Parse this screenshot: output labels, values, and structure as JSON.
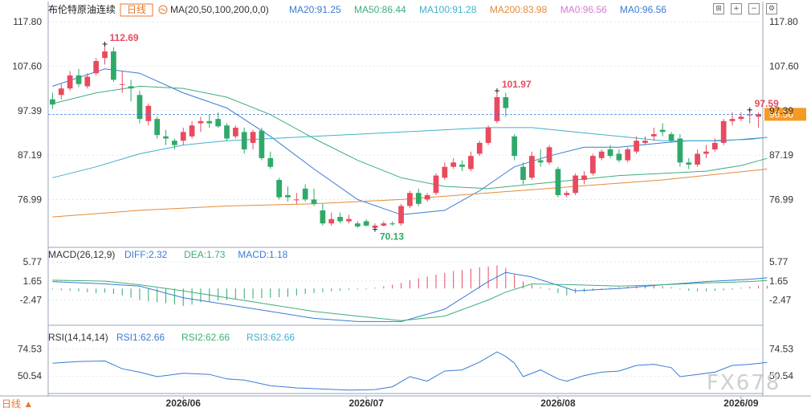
{
  "header": {
    "title": "布伦特原油连续",
    "period_tag": "日线",
    "ma_label": "MA(20,50,100,200,0,0)",
    "ma_values": [
      {
        "text": "MA20:91.25",
        "color": "#3a7bd5"
      },
      {
        "text": "MA50:86.44",
        "color": "#3fae78"
      },
      {
        "text": "MA100:91.28",
        "color": "#42b0cc"
      },
      {
        "text": "MA200:83.98",
        "color": "#e58a3a"
      },
      {
        "text": "MA0:96.56",
        "color": "#d57ad5"
      },
      {
        "text": "MA0:96.56",
        "color": "#3a7bd5"
      }
    ]
  },
  "toolbar": {
    "icons": [
      "grid-icon",
      "plus-icon",
      "minus-icon",
      "settings-icon"
    ]
  },
  "macd_header": {
    "label": "MACD(26,12,9)",
    "values": [
      {
        "text": "DIFF:2.32",
        "color": "#3a7bd5"
      },
      {
        "text": "DEA:1.73",
        "color": "#3fae78"
      },
      {
        "text": "MACD:1.18",
        "color": "#3a7bd5"
      }
    ]
  },
  "rsi_header": {
    "label": "RSI(14,14,14)",
    "values": [
      {
        "text": "RSI1:62.66",
        "color": "#3a7bd5"
      },
      {
        "text": "RSI2:62.66",
        "color": "#3fae78"
      },
      {
        "text": "RSI3:62.66",
        "color": "#42b0cc"
      }
    ]
  },
  "footer": {
    "period_button": "日线 ▲",
    "watermark": "FX678"
  },
  "colors": {
    "up": "#e84a5f",
    "down": "#2fa96a",
    "grid": "#cfd6e4",
    "axis_text": "#333333",
    "price_box": "#f59a23",
    "current_line": "#3a7bd5"
  },
  "chart_data": {
    "type": "candlestick",
    "price_axis": {
      "ticks": [
        117.8,
        107.6,
        97.39,
        87.19,
        76.99
      ],
      "range": [
        66.0,
        119.5
      ]
    },
    "x_labels": [
      {
        "index": 15,
        "label": "2026/06"
      },
      {
        "index": 36,
        "label": "2026/07"
      },
      {
        "index": 58,
        "label": "2026/08"
      },
      {
        "index": 79,
        "label": "2026/09"
      }
    ],
    "current_price": 96.56,
    "annotations": [
      {
        "index": 6,
        "label": "112.69",
        "kind": "high"
      },
      {
        "index": 37,
        "label": "70.13",
        "kind": "low"
      },
      {
        "index": 51,
        "label": "101.97",
        "kind": "high"
      },
      {
        "index": 80,
        "label": "97.59",
        "kind": "high"
      }
    ],
    "ohlc": [
      [
        100.0,
        101.5,
        97.8,
        98.8
      ],
      [
        101.0,
        103.5,
        100.0,
        102.5
      ],
      [
        102.5,
        106.5,
        102.0,
        105.5
      ],
      [
        105.5,
        107.0,
        102.8,
        103.5
      ],
      [
        103.0,
        106.0,
        102.5,
        105.2
      ],
      [
        106.0,
        109.5,
        105.5,
        108.8
      ],
      [
        109.5,
        112.69,
        108.0,
        111.0
      ],
      [
        111.0,
        112.0,
        104.0,
        104.5
      ],
      [
        103.5,
        106.5,
        101.5,
        103.5
      ],
      [
        103.0,
        104.5,
        99.5,
        102.5
      ],
      [
        101.0,
        102.0,
        94.5,
        95.5
      ],
      [
        95.0,
        99.0,
        94.0,
        98.5
      ],
      [
        95.5,
        96.0,
        91.0,
        91.8
      ],
      [
        91.5,
        93.0,
        89.5,
        91.0
      ],
      [
        90.5,
        91.0,
        88.5,
        89.5
      ],
      [
        90.5,
        93.5,
        89.5,
        92.5
      ],
      [
        91.5,
        95.0,
        91.0,
        94.0
      ],
      [
        94.5,
        96.0,
        92.5,
        95.0
      ],
      [
        95.0,
        96.5,
        93.5,
        94.5
      ],
      [
        95.5,
        97.0,
        93.5,
        93.8
      ],
      [
        94.0,
        94.5,
        90.5,
        91.0
      ],
      [
        91.5,
        94.0,
        91.0,
        93.5
      ],
      [
        92.5,
        93.5,
        87.5,
        88.5
      ],
      [
        90.0,
        93.0,
        88.5,
        92.5
      ],
      [
        92.8,
        93.5,
        86.0,
        86.5
      ],
      [
        86.5,
        88.0,
        84.0,
        84.5
      ],
      [
        81.5,
        82.0,
        77.0,
        77.5
      ],
      [
        78.0,
        80.0,
        76.5,
        77.5
      ],
      [
        77.0,
        78.5,
        76.0,
        77.0
      ],
      [
        79.5,
        80.5,
        76.5,
        77.0
      ],
      [
        77.0,
        79.5,
        75.5,
        76.0
      ],
      [
        74.5,
        76.0,
        71.0,
        71.5
      ],
      [
        71.5,
        74.0,
        71.0,
        72.5
      ],
      [
        73.0,
        74.0,
        71.5,
        72.0
      ],
      [
        72.0,
        73.5,
        71.5,
        72.5
      ],
      [
        71.5,
        72.0,
        70.5,
        70.8
      ],
      [
        72.0,
        72.5,
        70.8,
        71.0
      ],
      [
        70.5,
        71.5,
        70.13,
        71.0
      ],
      [
        71.0,
        72.0,
        70.8,
        71.5
      ],
      [
        71.5,
        72.0,
        71.0,
        71.3
      ],
      [
        71.5,
        76.0,
        71.0,
        75.5
      ],
      [
        75.5,
        79.0,
        75.0,
        78.5
      ],
      [
        78.5,
        79.5,
        75.5,
        76.0
      ],
      [
        77.0,
        78.5,
        76.5,
        78.0
      ],
      [
        78.5,
        83.0,
        78.0,
        82.5
      ],
      [
        82.0,
        85.5,
        81.5,
        84.5
      ],
      [
        84.5,
        86.5,
        84.0,
        85.5
      ],
      [
        85.0,
        86.0,
        83.5,
        84.5
      ],
      [
        84.0,
        88.0,
        83.5,
        87.0
      ],
      [
        87.5,
        90.5,
        87.0,
        90.0
      ],
      [
        90.0,
        94.0,
        89.5,
        93.5
      ],
      [
        95.0,
        101.97,
        94.5,
        100.5
      ],
      [
        100.5,
        101.5,
        96.0,
        98.0
      ],
      [
        91.5,
        92.0,
        86.0,
        87.0
      ],
      [
        84.5,
        85.5,
        80.5,
        81.5
      ],
      [
        82.0,
        88.0,
        81.5,
        87.0
      ],
      [
        86.0,
        88.5,
        84.5,
        85.5
      ],
      [
        85.5,
        89.5,
        85.0,
        89.0
      ],
      [
        84.0,
        84.5,
        77.5,
        78.0
      ],
      [
        78.0,
        79.0,
        77.5,
        78.5
      ],
      [
        78.5,
        83.0,
        78.0,
        82.5
      ],
      [
        81.5,
        83.5,
        80.5,
        82.5
      ],
      [
        83.0,
        87.5,
        82.5,
        87.0
      ],
      [
        86.5,
        88.5,
        86.0,
        88.0
      ],
      [
        88.5,
        89.5,
        86.5,
        87.0
      ],
      [
        87.5,
        88.5,
        85.5,
        86.0
      ],
      [
        86.0,
        89.0,
        85.5,
        88.5
      ],
      [
        88.0,
        91.5,
        87.5,
        90.5
      ],
      [
        90.0,
        91.5,
        89.5,
        90.5
      ],
      [
        91.5,
        93.5,
        90.5,
        92.0
      ],
      [
        93.0,
        94.5,
        91.5,
        92.5
      ],
      [
        92.0,
        92.5,
        90.0,
        90.5
      ],
      [
        91.0,
        92.0,
        84.5,
        85.5
      ],
      [
        85.5,
        86.5,
        84.0,
        85.0
      ],
      [
        85.0,
        88.5,
        84.5,
        87.5
      ],
      [
        87.5,
        89.5,
        86.5,
        88.0
      ],
      [
        88.5,
        91.0,
        88.0,
        90.0
      ],
      [
        90.0,
        95.5,
        89.5,
        95.0
      ],
      [
        95.0,
        97.0,
        94.0,
        95.5
      ],
      [
        95.5,
        97.0,
        95.0,
        96.0
      ],
      [
        96.5,
        97.59,
        94.5,
        96.5
      ],
      [
        96.0,
        97.0,
        93.5,
        96.56
      ]
    ],
    "moving_averages": [
      {
        "name": "MA20",
        "color": "#3a7bd5",
        "values": [
          [
            0,
            103.0
          ],
          [
            6,
            107.0
          ],
          [
            10,
            106.0
          ],
          [
            15,
            101.5
          ],
          [
            20,
            98.0
          ],
          [
            25,
            91.5
          ],
          [
            30,
            84.0
          ],
          [
            35,
            77.0
          ],
          [
            40,
            73.5
          ],
          [
            45,
            74.5
          ],
          [
            49,
            79.0
          ],
          [
            53,
            84.5
          ],
          [
            57,
            87.0
          ],
          [
            61,
            89.0
          ],
          [
            65,
            89.0
          ],
          [
            70,
            90.0
          ],
          [
            73,
            90.5
          ],
          [
            77,
            90.5
          ],
          [
            82,
            91.25
          ]
        ]
      },
      {
        "name": "MA50",
        "color": "#3fae78",
        "values": [
          [
            0,
            99.0
          ],
          [
            5,
            101.5
          ],
          [
            10,
            103.0
          ],
          [
            15,
            102.5
          ],
          [
            20,
            100.5
          ],
          [
            25,
            96.5
          ],
          [
            30,
            91.0
          ],
          [
            35,
            86.0
          ],
          [
            40,
            82.0
          ],
          [
            45,
            80.0
          ],
          [
            50,
            79.5
          ],
          [
            55,
            80.5
          ],
          [
            60,
            81.5
          ],
          [
            65,
            82.5
          ],
          [
            70,
            83.0
          ],
          [
            75,
            83.5
          ],
          [
            79,
            84.8
          ],
          [
            82,
            86.44
          ]
        ]
      },
      {
        "name": "MA100",
        "color": "#42b0cc",
        "values": [
          [
            0,
            82.0
          ],
          [
            5,
            84.5
          ],
          [
            10,
            87.5
          ],
          [
            15,
            89.5
          ],
          [
            20,
            90.5
          ],
          [
            25,
            91.0
          ],
          [
            30,
            91.5
          ],
          [
            35,
            92.0
          ],
          [
            40,
            92.5
          ],
          [
            45,
            93.0
          ],
          [
            50,
            93.5
          ],
          [
            55,
            93.5
          ],
          [
            60,
            92.5
          ],
          [
            65,
            91.5
          ],
          [
            70,
            90.5
          ],
          [
            75,
            90.5
          ],
          [
            80,
            90.8
          ],
          [
            82,
            91.28
          ]
        ]
      },
      {
        "name": "MA200",
        "color": "#e58a3a",
        "values": [
          [
            0,
            73.0
          ],
          [
            10,
            74.5
          ],
          [
            20,
            75.5
          ],
          [
            30,
            76.0
          ],
          [
            40,
            77.0
          ],
          [
            50,
            78.5
          ],
          [
            60,
            80.0
          ],
          [
            70,
            81.5
          ],
          [
            82,
            83.98
          ]
        ]
      }
    ],
    "macd": {
      "ticks": [
        5.77,
        1.65,
        -2.47
      ],
      "range": [
        -8.0,
        6.5
      ],
      "diff": [
        [
          0,
          1.5
        ],
        [
          6,
          1.0
        ],
        [
          10,
          0.5
        ],
        [
          15,
          -2.0
        ],
        [
          20,
          -3.5
        ],
        [
          25,
          -5.0
        ],
        [
          30,
          -6.5
        ],
        [
          35,
          -7.2
        ],
        [
          40,
          -7.2
        ],
        [
          45,
          -4.5
        ],
        [
          50,
          1.5
        ],
        [
          52,
          3.5
        ],
        [
          55,
          2.5
        ],
        [
          60,
          -0.5
        ],
        [
          65,
          0.0
        ],
        [
          70,
          0.8
        ],
        [
          75,
          1.5
        ],
        [
          80,
          2.0
        ],
        [
          82,
          2.32
        ]
      ],
      "dea": [
        [
          0,
          1.8
        ],
        [
          6,
          1.6
        ],
        [
          10,
          0.8
        ],
        [
          15,
          -0.5
        ],
        [
          20,
          -2.0
        ],
        [
          25,
          -3.5
        ],
        [
          30,
          -5.0
        ],
        [
          35,
          -6.0
        ],
        [
          40,
          -7.0
        ],
        [
          45,
          -6.0
        ],
        [
          50,
          -2.5
        ],
        [
          52,
          -0.8
        ],
        [
          55,
          1.0
        ],
        [
          60,
          0.8
        ],
        [
          65,
          0.5
        ],
        [
          70,
          0.8
        ],
        [
          75,
          1.2
        ],
        [
          80,
          1.5
        ],
        [
          82,
          1.73
        ]
      ],
      "hist": [
        -0.2,
        -0.4,
        -0.5,
        -0.6,
        -0.8,
        -1.0,
        -0.9,
        -1.2,
        -1.5,
        -2.0,
        -2.5,
        -2.8,
        -3.0,
        -3.2,
        -3.5,
        -3.8,
        -3.5,
        -3.0,
        -2.8,
        -2.6,
        -2.5,
        -2.4,
        -2.3,
        -2.2,
        -2.1,
        -2.0,
        -1.9,
        -1.8,
        -1.5,
        -1.2,
        -1.0,
        -0.8,
        -0.6,
        -0.5,
        -0.3,
        -0.2,
        -0.2,
        0.2,
        0.5,
        0.8,
        1.2,
        1.8,
        2.2,
        2.6,
        3.0,
        3.4,
        3.8,
        4.0,
        4.3,
        4.6,
        4.8,
        5.0,
        4.5,
        3.0,
        1.5,
        0.8,
        0.3,
        -0.3,
        -1.0,
        -1.5,
        -1.0,
        -0.8,
        -0.5,
        -0.3,
        0.2,
        0.3,
        0.4,
        0.5,
        0.6,
        0.6,
        0.5,
        0.3,
        -0.2,
        -0.5,
        -0.6,
        -0.6,
        -0.5,
        -0.4,
        -0.3,
        0.2,
        0.4,
        0.6,
        0.6
      ]
    },
    "rsi": {
      "ticks": [
        74.53,
        50.54
      ],
      "range": [
        35,
        85
      ],
      "values": [
        [
          0,
          62.0
        ],
        [
          3,
          63.5
        ],
        [
          6,
          64.0
        ],
        [
          8,
          57.0
        ],
        [
          10,
          54.0
        ],
        [
          12,
          50.0
        ],
        [
          15,
          53.0
        ],
        [
          18,
          52.0
        ],
        [
          20,
          48.0
        ],
        [
          22,
          47.0
        ],
        [
          25,
          42.0
        ],
        [
          28,
          40.0
        ],
        [
          31,
          39.0
        ],
        [
          34,
          38.0
        ],
        [
          37,
          38.5
        ],
        [
          39,
          41.0
        ],
        [
          41,
          50.0
        ],
        [
          43,
          46.0
        ],
        [
          45,
          55.0
        ],
        [
          47,
          56.0
        ],
        [
          49,
          63.0
        ],
        [
          51,
          72.0
        ],
        [
          52,
          68.0
        ],
        [
          53,
          62.0
        ],
        [
          54,
          50.0
        ],
        [
          56,
          56.0
        ],
        [
          58,
          48.0
        ],
        [
          59,
          46.0
        ],
        [
          61,
          51.0
        ],
        [
          63,
          54.0
        ],
        [
          65,
          55.0
        ],
        [
          67,
          60.0
        ],
        [
          69,
          61.0
        ],
        [
          71,
          58.0
        ],
        [
          72,
          50.0
        ],
        [
          74,
          52.0
        ],
        [
          76,
          54.0
        ],
        [
          78,
          60.0
        ],
        [
          80,
          61.0
        ],
        [
          82,
          62.66
        ]
      ]
    }
  }
}
